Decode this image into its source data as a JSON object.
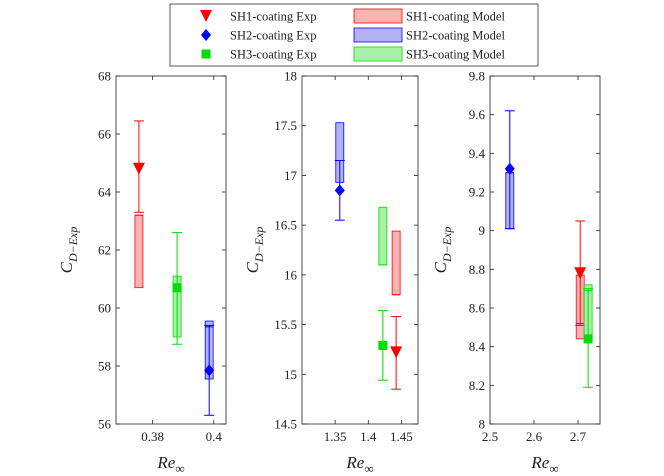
{
  "legend": {
    "entries": [
      {
        "label": "SH1-coating Exp",
        "kind": "marker",
        "marker": "triangle-down",
        "color": "#ff0000"
      },
      {
        "label": "SH1-coating Model",
        "kind": "box",
        "color": "#ff0000"
      },
      {
        "label": "SH2-coating Exp",
        "kind": "marker",
        "marker": "diamond",
        "color": "#0000ff"
      },
      {
        "label": "SH2-coating Model",
        "kind": "box",
        "color": "#0000ff"
      },
      {
        "label": "SH3-coating Exp",
        "kind": "marker",
        "marker": "square",
        "color": "#00dd00"
      },
      {
        "label": "SH3-coating Model",
        "kind": "box",
        "color": "#00dd00"
      }
    ]
  },
  "chart_data": [
    {
      "type": "errorbar+box",
      "xlabel_main": "Re",
      "xlabel_sub": "∞",
      "ylabel_main": "C",
      "ylabel_sub": "D−Exp",
      "xlim": [
        0.368,
        0.404
      ],
      "ylim": [
        56,
        68
      ],
      "xticks": [
        0.38,
        0.4
      ],
      "xticklabels": [
        "0.38",
        "0.4"
      ],
      "yticks": [
        56,
        58,
        60,
        62,
        64,
        66,
        68
      ],
      "yticklabels": [
        "56",
        "58",
        "60",
        "62",
        "64",
        "66",
        "68"
      ],
      "series": [
        {
          "name": "SH1-coating",
          "color": "#ff0000",
          "marker": "triangle-down",
          "exp": {
            "x": 0.3755,
            "y": 64.8,
            "err_low": 63.3,
            "err_high": 66.45
          },
          "model": {
            "x": 0.3755,
            "low": 60.7,
            "mid": 63.2,
            "high": 63.2
          }
        },
        {
          "name": "SH3-coating",
          "color": "#00dd00",
          "marker": "square",
          "exp": {
            "x": 0.388,
            "y": 60.7,
            "err_low": 58.75,
            "err_high": 62.6
          },
          "model": {
            "x": 0.388,
            "low": 59.0,
            "mid": 60.6,
            "high": 61.1
          }
        },
        {
          "name": "SH2-coating",
          "color": "#0000ff",
          "marker": "diamond",
          "exp": {
            "x": 0.3985,
            "y": 57.85,
            "err_low": 56.3,
            "err_high": 59.4
          },
          "model": {
            "x": 0.3985,
            "low": 57.55,
            "mid": 59.35,
            "high": 59.55
          }
        }
      ]
    },
    {
      "type": "errorbar+box",
      "xlabel_main": "Re",
      "xlabel_sub": "∞",
      "ylabel_main": "C",
      "ylabel_sub": "D−Exp",
      "xlim": [
        1.3,
        1.475
      ],
      "ylim": [
        14.5,
        18
      ],
      "xticks": [
        1.35,
        1.4,
        1.45
      ],
      "xticklabels": [
        "1.35",
        "1.4",
        "1.45"
      ],
      "yticks": [
        14.5,
        15,
        15.5,
        16,
        16.5,
        17,
        17.5,
        18
      ],
      "yticklabels": [
        "14.5",
        "15",
        "15.5",
        "16",
        "16.5",
        "17",
        "17.5",
        "18"
      ],
      "series": [
        {
          "name": "SH2-coating",
          "color": "#0000ff",
          "marker": "diamond",
          "exp": {
            "x": 1.357,
            "y": 16.85,
            "err_low": 16.55,
            "err_high": 17.15
          },
          "model": {
            "x": 1.357,
            "low": 16.93,
            "mid": 17.15,
            "high": 17.53
          }
        },
        {
          "name": "SH3-coating",
          "color": "#00dd00",
          "marker": "square",
          "exp": {
            "x": 1.422,
            "y": 15.29,
            "err_low": 14.94,
            "err_high": 15.64
          },
          "model": {
            "x": 1.422,
            "low": 16.1,
            "mid": 16.1,
            "high": 16.68
          }
        },
        {
          "name": "SH1-coating",
          "color": "#ff0000",
          "marker": "triangle-down",
          "exp": {
            "x": 1.442,
            "y": 15.22,
            "err_low": 14.85,
            "err_high": 15.58
          },
          "model": {
            "x": 1.442,
            "low": 15.8,
            "mid": 15.8,
            "high": 16.44
          }
        }
      ]
    },
    {
      "type": "errorbar+box",
      "xlabel_main": "Re",
      "xlabel_sub": "∞",
      "ylabel_main": "C",
      "ylabel_sub": "D−Exp",
      "xlim": [
        2.5,
        2.75
      ],
      "ylim": [
        8,
        9.8
      ],
      "xticks": [
        2.5,
        2.6,
        2.7
      ],
      "xticklabels": [
        "2.5",
        "2.6",
        "2.7"
      ],
      "yticks": [
        8,
        8.2,
        8.4,
        8.6,
        8.8,
        9,
        9.2,
        9.4,
        9.6,
        9.8
      ],
      "yticklabels": [
        "8",
        "8.2",
        "8.4",
        "8.6",
        "8.8",
        "9",
        "9.2",
        "9.4",
        "9.6",
        "9.8"
      ],
      "series": [
        {
          "name": "SH2-coating",
          "color": "#0000ff",
          "marker": "diamond",
          "exp": {
            "x": 2.545,
            "y": 9.32,
            "err_low": 9.01,
            "err_high": 9.62
          },
          "model": {
            "x": 2.545,
            "low": 9.01,
            "mid": 9.3,
            "high": 9.3
          }
        },
        {
          "name": "SH1-coating",
          "color": "#ff0000",
          "marker": "triangle-down",
          "exp": {
            "x": 2.705,
            "y": 8.78,
            "err_low": 8.51,
            "err_high": 9.05
          },
          "model": {
            "x": 2.705,
            "low": 8.44,
            "mid": 8.52,
            "high": 8.77
          }
        },
        {
          "name": "SH3-coating",
          "color": "#00dd00",
          "marker": "square",
          "exp": {
            "x": 2.723,
            "y": 8.44,
            "err_low": 8.19,
            "err_high": 8.7
          },
          "model": {
            "x": 2.723,
            "low": 8.46,
            "mid": 8.69,
            "high": 8.72
          }
        }
      ]
    }
  ]
}
